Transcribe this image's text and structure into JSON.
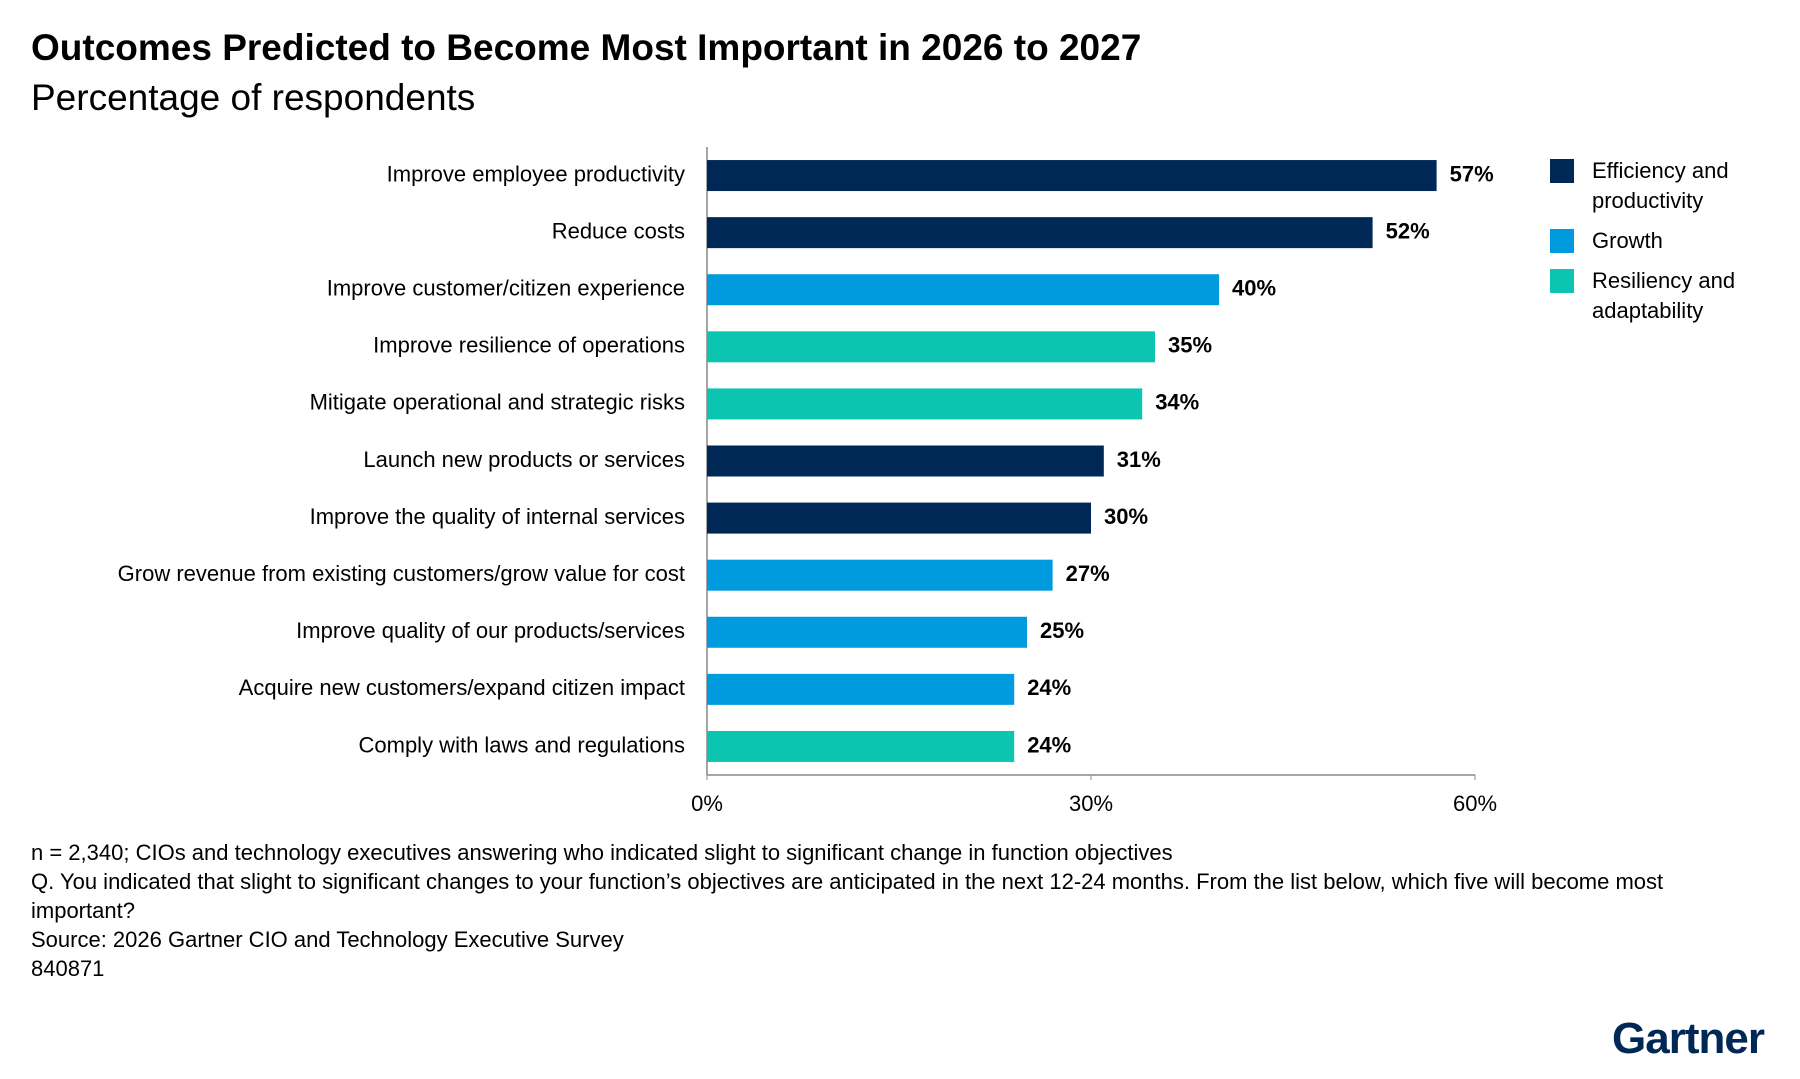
{
  "chart_data": {
    "type": "hbar",
    "title": "Outcomes Predicted to Become Most Important in 2026 to 2027",
    "subtitle": "Percentage of respondents",
    "categories": [
      "Improve employee productivity",
      "Reduce costs",
      "Improve customer/citizen experience",
      "Improve resilience of operations",
      "Mitigate operational and strategic risks",
      "Launch new products or services",
      "Improve the quality of internal services",
      "Grow revenue from existing customers/grow value for cost",
      "Improve quality of our products/services",
      "Acquire new customers/expand citizen impact",
      "Comply with laws and regulations"
    ],
    "series": [
      {
        "name": "Efficiency and productivity",
        "color": "#002856",
        "values": [
          57,
          52,
          null,
          null,
          null,
          31,
          30,
          null,
          null,
          null,
          null
        ],
        "value_labels": [
          "57%",
          "52%",
          null,
          null,
          null,
          "31%",
          "30%",
          null,
          null,
          null,
          null
        ]
      },
      {
        "name": "Growth",
        "color": "#009ade",
        "values": [
          null,
          null,
          40,
          null,
          null,
          null,
          null,
          27,
          25,
          24,
          null
        ],
        "value_labels": [
          null,
          null,
          "40%",
          null,
          null,
          null,
          null,
          "27%",
          "25%",
          "24%",
          null
        ]
      },
      {
        "name": "Resiliency and adaptability",
        "color": "#0bc5b1",
        "values": [
          null,
          null,
          null,
          35,
          34,
          null,
          null,
          null,
          null,
          null,
          24
        ],
        "value_labels": [
          null,
          null,
          null,
          "35%",
          "34%",
          null,
          null,
          null,
          null,
          null,
          "24%"
        ]
      }
    ],
    "xlim": [
      0,
      60
    ],
    "xticks": [
      {
        "value": 0,
        "label": "0%"
      },
      {
        "value": 30,
        "label": "30%"
      },
      {
        "value": 60,
        "label": "60%"
      }
    ],
    "grid": false,
    "legend": "right",
    "notes": [
      "n = 2,340; CIOs and technology executives answering who indicated slight to significant change in function objectives",
      "Q. You indicated that slight to significant changes to your function’s objectives are anticipated in the next 12-24 months. From the list below, which five will become most important?",
      "Source: 2026 Gartner CIO and Technology Executive Survey",
      "840871"
    ],
    "logo": "Gartner"
  }
}
